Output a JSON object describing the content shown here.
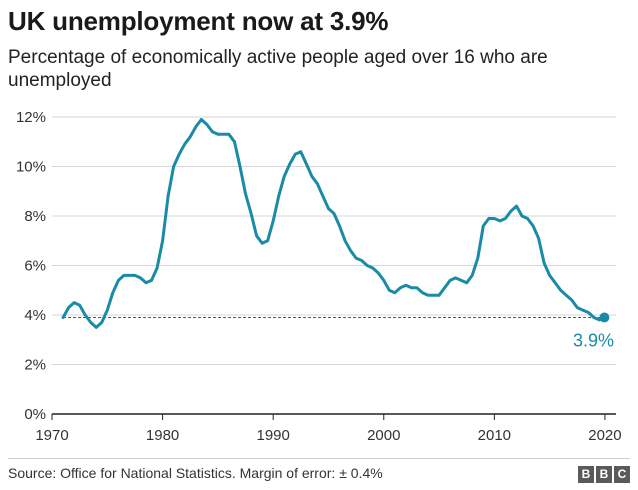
{
  "header": {
    "title": "UK unemployment now at 3.9%",
    "subtitle": "Percentage of economically active people aged over 16 who are unemployed"
  },
  "footer": {
    "source": "Source: Office for National Statistics. Margin of error: ± 0.4%",
    "logo_letters": [
      "B",
      "B",
      "C"
    ]
  },
  "colors": {
    "line": "#1a8ba6",
    "reference_line": "#555555",
    "gridline": "#d6d6d6",
    "baseline": "#222222",
    "endpoint_label": "#1a8ba6"
  },
  "chart_data": {
    "type": "line",
    "xlim": [
      1970,
      2021
    ],
    "ylim": [
      0,
      12
    ],
    "x_ticks": [
      1970,
      1980,
      1990,
      2000,
      2010,
      2020
    ],
    "x_tick_labels": [
      "1970",
      "1980",
      "1990",
      "2000",
      "2010",
      "2020"
    ],
    "y_ticks": [
      0,
      2,
      4,
      6,
      8,
      10,
      12
    ],
    "y_tick_labels": [
      "0%",
      "2%",
      "4%",
      "6%",
      "8%",
      "10%",
      "12%"
    ],
    "grid": true,
    "reference_line": {
      "y": 3.9,
      "style": "dashed"
    },
    "endpoint": {
      "x": 2019.95,
      "y": 3.9,
      "label": "3.9%"
    },
    "series": [
      {
        "x": [
          1971.0,
          1971.5,
          1972.0,
          1972.5,
          1973.0,
          1973.5,
          1974.0,
          1974.5,
          1975.0,
          1975.5,
          1976.0,
          1976.5,
          1977.0,
          1977.5,
          1978.0,
          1978.5,
          1979.0,
          1979.5,
          1980.0,
          1980.5,
          1981.0,
          1981.5,
          1982.0,
          1982.5,
          1983.0,
          1983.5,
          1984.0,
          1984.5,
          1985.0,
          1985.5,
          1986.0,
          1986.5,
          1987.0,
          1987.5,
          1988.0,
          1988.5,
          1989.0,
          1989.5,
          1990.0,
          1990.5,
          1991.0,
          1991.5,
          1992.0,
          1992.5,
          1993.0,
          1993.5,
          1994.0,
          1994.5,
          1995.0,
          1995.5,
          1996.0,
          1996.5,
          1997.0,
          1997.5,
          1998.0,
          1998.5,
          1999.0,
          1999.5,
          2000.0,
          2000.5,
          2001.0,
          2001.5,
          2002.0,
          2002.5,
          2003.0,
          2003.5,
          2004.0,
          2004.5,
          2005.0,
          2005.5,
          2006.0,
          2006.5,
          2007.0,
          2007.5,
          2008.0,
          2008.5,
          2009.0,
          2009.5,
          2010.0,
          2010.5,
          2011.0,
          2011.5,
          2012.0,
          2012.5,
          2013.0,
          2013.5,
          2014.0,
          2014.5,
          2015.0,
          2015.5,
          2016.0,
          2016.5,
          2017.0,
          2017.5,
          2018.0,
          2018.5,
          2019.0,
          2019.5,
          2019.95
        ],
        "y": [
          3.9,
          4.3,
          4.5,
          4.4,
          4.0,
          3.7,
          3.5,
          3.7,
          4.2,
          4.9,
          5.4,
          5.6,
          5.6,
          5.6,
          5.5,
          5.3,
          5.4,
          5.9,
          7.0,
          8.8,
          10.0,
          10.5,
          10.9,
          11.2,
          11.6,
          11.9,
          11.7,
          11.4,
          11.3,
          11.3,
          11.3,
          11.0,
          10.0,
          8.9,
          8.1,
          7.2,
          6.9,
          7.0,
          7.8,
          8.8,
          9.6,
          10.1,
          10.5,
          10.6,
          10.1,
          9.6,
          9.3,
          8.8,
          8.3,
          8.1,
          7.6,
          7.0,
          6.6,
          6.3,
          6.2,
          6.0,
          5.9,
          5.7,
          5.4,
          5.0,
          4.9,
          5.1,
          5.2,
          5.1,
          5.1,
          4.9,
          4.8,
          4.8,
          4.8,
          5.1,
          5.4,
          5.5,
          5.4,
          5.3,
          5.6,
          6.3,
          7.6,
          7.9,
          7.9,
          7.8,
          7.9,
          8.2,
          8.4,
          8.0,
          7.9,
          7.6,
          7.1,
          6.1,
          5.6,
          5.3,
          5.0,
          4.8,
          4.6,
          4.3,
          4.2,
          4.1,
          3.9,
          3.8,
          3.9
        ]
      }
    ]
  }
}
